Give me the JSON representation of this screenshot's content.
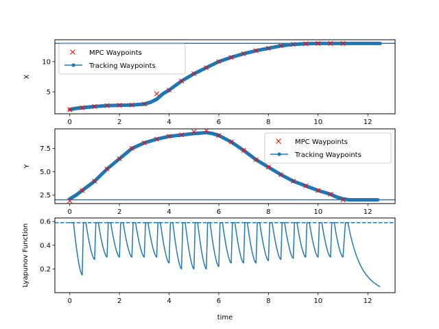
{
  "colors": {
    "line": "#1f77b4",
    "marker_x": "#ff0000",
    "axis": "#000000"
  },
  "chart_data": [
    {
      "type": "line",
      "ylabel": "X",
      "xlabel": "",
      "xlim": [
        -0.6,
        13.1
      ],
      "ylim": [
        1.4,
        13.6
      ],
      "xticks": [
        0,
        2,
        4,
        6,
        8,
        10,
        12
      ],
      "yticks": [
        5,
        10
      ],
      "hline": 13.0,
      "legend": {
        "position": "top-left",
        "entries": [
          "MPC Waypoints",
          "Tracking Waypoints"
        ]
      },
      "series": [
        {
          "name": "Tracking Waypoints",
          "marker": "dot",
          "x": [
            0,
            0.25,
            0.5,
            0.75,
            1,
            1.5,
            2,
            2.5,
            3,
            3.25,
            3.5,
            3.75,
            4,
            4.5,
            5,
            5.5,
            6,
            6.5,
            7,
            7.5,
            8,
            8.5,
            9,
            9.5,
            10,
            10.5,
            11,
            11.5,
            12,
            12.5
          ],
          "y": [
            2.1,
            2.3,
            2.4,
            2.5,
            2.6,
            2.75,
            2.8,
            2.85,
            3.0,
            3.3,
            3.8,
            4.7,
            5.3,
            6.8,
            8.0,
            9.0,
            10.0,
            10.7,
            11.3,
            11.8,
            12.2,
            12.6,
            12.85,
            12.95,
            13.0,
            13.0,
            13.0,
            13.0,
            13.0,
            13.0
          ]
        },
        {
          "name": "MPC Waypoints",
          "marker": "x",
          "x": [
            0,
            0.5,
            1,
            1.5,
            2,
            2.5,
            3,
            3.5,
            4,
            4.5,
            5,
            5.5,
            6,
            6.5,
            7,
            7.5,
            8,
            8.5,
            9,
            9.5,
            10,
            10.5,
            11
          ],
          "y": [
            2.1,
            2.4,
            2.6,
            2.75,
            2.8,
            2.85,
            3.0,
            4.7,
            5.3,
            6.8,
            8.0,
            9.0,
            10.0,
            10.7,
            11.3,
            11.8,
            12.2,
            12.6,
            12.85,
            12.95,
            13.0,
            13.0,
            13.0
          ]
        }
      ]
    },
    {
      "type": "line",
      "ylabel": "Y",
      "xlabel": "",
      "xlim": [
        -0.6,
        13.1
      ],
      "ylim": [
        1.6,
        9.6
      ],
      "xticks": [
        0,
        2,
        4,
        6,
        8,
        10,
        12
      ],
      "yticks": [
        2.5,
        5.0,
        7.5
      ],
      "hline": 2.0,
      "legend": {
        "position": "top-right",
        "entries": [
          "MPC Waypoints",
          "Tracking Waypoints"
        ]
      },
      "series": [
        {
          "name": "Tracking Waypoints",
          "marker": "dot",
          "x": [
            0,
            0.25,
            0.5,
            0.75,
            1,
            1.5,
            2,
            2.5,
            3,
            3.5,
            4,
            4.5,
            5,
            5.5,
            5.75,
            6,
            6.5,
            7,
            7.5,
            8,
            8.5,
            9,
            9.5,
            10,
            10.5,
            10.75,
            11,
            11.25,
            11.5,
            12,
            12.4
          ],
          "y": [
            2.1,
            2.5,
            3.0,
            3.5,
            4.0,
            5.3,
            6.4,
            7.5,
            8.1,
            8.5,
            8.8,
            8.95,
            9.1,
            9.2,
            9.1,
            8.9,
            8.2,
            7.3,
            6.3,
            5.5,
            4.7,
            4.0,
            3.5,
            3.0,
            2.6,
            2.3,
            2.1,
            2.0,
            2.0,
            2.0,
            2.0
          ]
        },
        {
          "name": "MPC Waypoints",
          "marker": "x",
          "x": [
            0,
            0.5,
            1,
            1.5,
            2,
            2.5,
            3,
            3.5,
            4,
            4.5,
            5,
            5.5,
            6,
            6.5,
            7,
            7.5,
            8,
            8.5,
            9,
            9.5,
            10,
            10.5,
            11
          ],
          "y": [
            1.9,
            3.0,
            4.0,
            5.3,
            6.4,
            7.5,
            8.1,
            8.5,
            8.8,
            8.95,
            9.3,
            9.4,
            8.9,
            8.2,
            7.3,
            6.3,
            5.5,
            4.7,
            4.0,
            3.5,
            3.0,
            2.6,
            2.0
          ]
        }
      ]
    },
    {
      "type": "line",
      "ylabel": "Lyapunov Function",
      "xlabel": "time",
      "xlim": [
        -0.6,
        13.1
      ],
      "ylim": [
        0.0,
        0.63
      ],
      "xticks": [
        0,
        2,
        4,
        6,
        8,
        10,
        12
      ],
      "yticks": [
        0.2,
        0.4,
        0.6
      ],
      "hline_dashed": 0.59,
      "series": [
        {
          "name": "",
          "segment_period": 0.5,
          "peak": 0.59,
          "segment_mins": [
            0.15,
            0.28,
            0.3,
            0.3,
            0.3,
            0.3,
            0.3,
            0.25,
            0.2,
            0.2,
            0.2,
            0.22,
            0.25,
            0.25,
            0.25,
            0.27,
            0.28,
            0.29,
            0.3,
            0.3,
            0.3,
            0.3
          ],
          "tail": {
            "x_start": 11.1,
            "x_end": 12.5,
            "y_end": 0.05
          }
        }
      ]
    }
  ]
}
